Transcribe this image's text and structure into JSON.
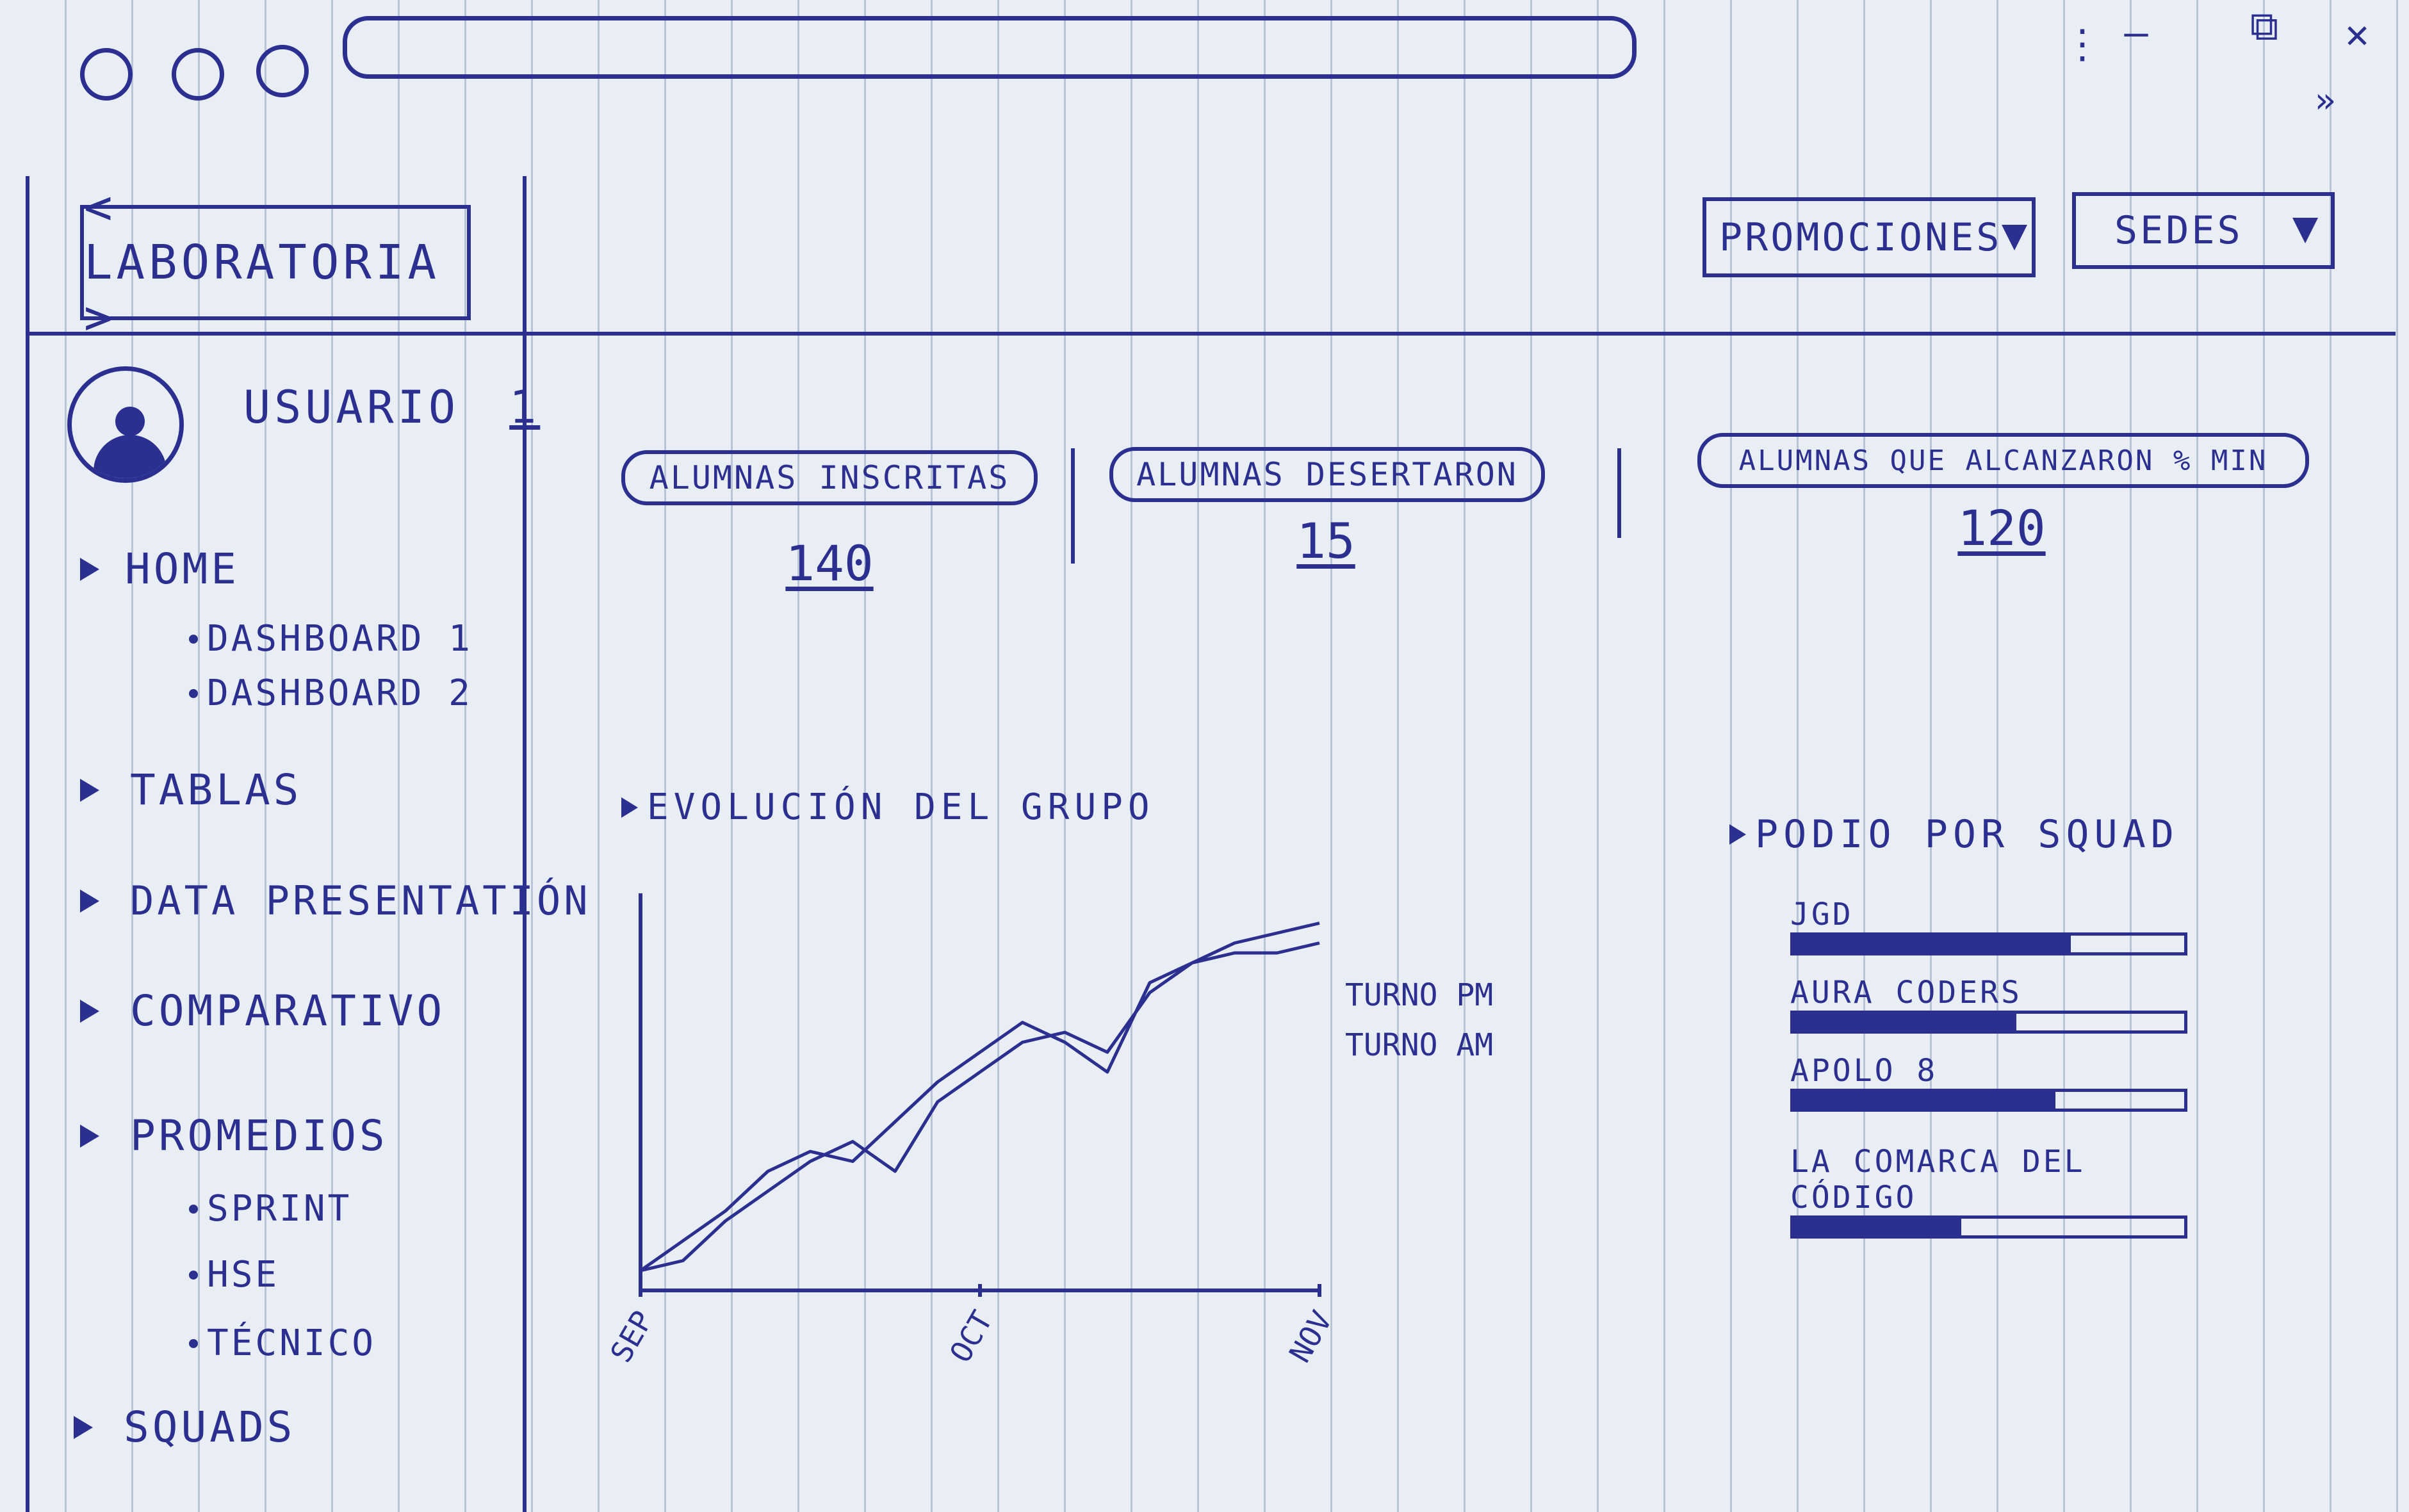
{
  "window": {
    "controls": {
      "menu": "⋮",
      "minimize": "–",
      "restore": "⧉",
      "close": "✕",
      "expand": "»"
    },
    "url": ""
  },
  "header": {
    "logo": "< LABORATORIA >",
    "filters": [
      {
        "label": "PROMOCIONES",
        "icon": "caret-down-icon"
      },
      {
        "label": "SEDES",
        "icon": "caret-down-icon"
      }
    ]
  },
  "sidebar": {
    "user": {
      "name": "USUARIO",
      "number": "1",
      "icon": "avatar-icon"
    },
    "nav": [
      {
        "label": "HOME",
        "children": [
          "DASHBOARD 1",
          "DASHBOARD 2"
        ]
      },
      {
        "label": "TABLAS",
        "children": []
      },
      {
        "label": "DATA PRESENTATIÓN",
        "children": []
      },
      {
        "label": "COMPARATIVO",
        "children": []
      },
      {
        "label": "PROMEDIOS",
        "children": [
          "SPRINT",
          "HSE",
          "TÉCNICO"
        ]
      },
      {
        "label": "SQUADS",
        "children": []
      }
    ]
  },
  "kpis": [
    {
      "label": "ALUMNAS INSCRITAS",
      "value": "140"
    },
    {
      "label": "ALUMNAS DESERTARON",
      "value": "15"
    },
    {
      "label": "ALUMNAS QUE ALCANZARON % MIN",
      "value": "120"
    }
  ],
  "chart_data": {
    "type": "line",
    "title": "EVOLUCIÓN DEL GRUPO",
    "x_ticks": [
      "SEP",
      "OCT",
      "NOV"
    ],
    "series": [
      {
        "name": "TURNO PM",
        "values": [
          2,
          3,
          7,
          10,
          13,
          15,
          12,
          19,
          22,
          25,
          26,
          24,
          30,
          33,
          35,
          36,
          37
        ]
      },
      {
        "name": "TURNO AM",
        "values": [
          2,
          5,
          8,
          12,
          14,
          13,
          17,
          21,
          24,
          27,
          25,
          22,
          31,
          33,
          34,
          34,
          35
        ]
      }
    ],
    "ylim": [
      0,
      40
    ],
    "grid": false,
    "legend": "right"
  },
  "podio": {
    "title": "PODIO POR SQUAD",
    "squads": [
      {
        "name": "JGD",
        "value": 0.71
      },
      {
        "name": "AURA CODERS",
        "value": 0.57
      },
      {
        "name": "APOLO 8",
        "value": 0.67
      },
      {
        "name": "LA COMARCA DEL CÓDIGO",
        "value": 0.43
      }
    ]
  }
}
